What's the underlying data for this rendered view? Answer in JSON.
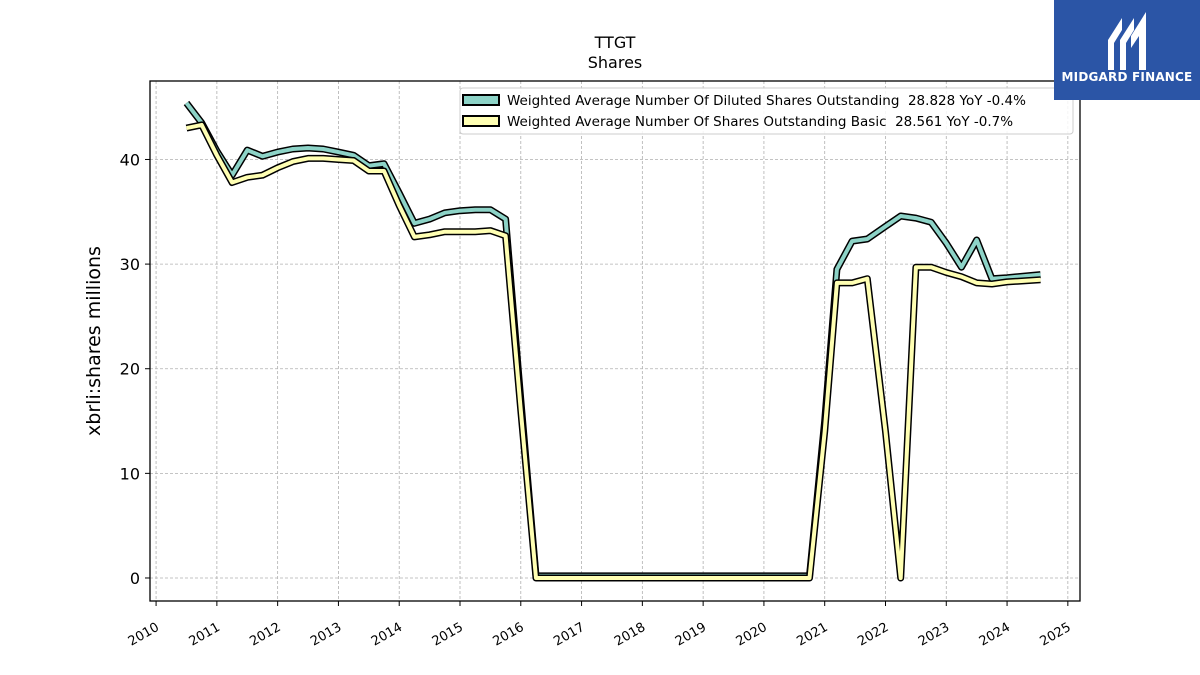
{
  "brand": {
    "name": "MIDGARD FINANCE",
    "logo_bg": "#2b55a6"
  },
  "chart_data": {
    "type": "line",
    "title": "TTGT",
    "subtitle": "Shares",
    "xlabel": "",
    "ylabel": "xbrli:shares millions",
    "xlim": [
      2009.9,
      2025.2
    ],
    "ylim": [
      -2.2,
      47.5
    ],
    "x_ticks": [
      "2010",
      "2011",
      "2012",
      "2013",
      "2014",
      "2015",
      "2016",
      "2017",
      "2018",
      "2019",
      "2020",
      "2021",
      "2022",
      "2023",
      "2024",
      "2025"
    ],
    "y_ticks": [
      "0",
      "10",
      "20",
      "30",
      "40"
    ],
    "grid": true,
    "legend_position": "top-right",
    "series": [
      {
        "name": "Weighted Average Number Of Diluted Shares Outstanding  28.828 YoY -0.4%",
        "color": "#8dd3c7",
        "points": [
          [
            2010.5,
            45.4
          ],
          [
            2010.75,
            43.5
          ],
          [
            2011.0,
            40.8
          ],
          [
            2011.25,
            38.5
          ],
          [
            2011.5,
            40.9
          ],
          [
            2011.75,
            40.3
          ],
          [
            2012.0,
            40.7
          ],
          [
            2012.25,
            41.0
          ],
          [
            2012.5,
            41.1
          ],
          [
            2012.75,
            41.0
          ],
          [
            2013.0,
            40.7
          ],
          [
            2013.25,
            40.4
          ],
          [
            2013.5,
            39.4
          ],
          [
            2013.75,
            39.6
          ],
          [
            2014.0,
            36.8
          ],
          [
            2014.25,
            33.9
          ],
          [
            2014.5,
            34.3
          ],
          [
            2014.75,
            34.9
          ],
          [
            2015.0,
            35.1
          ],
          [
            2015.25,
            35.2
          ],
          [
            2015.5,
            35.2
          ],
          [
            2015.75,
            34.3
          ],
          [
            2016.0,
            17.0
          ],
          [
            2016.25,
            0.2
          ],
          [
            2020.75,
            0.2
          ],
          [
            2021.0,
            15.0
          ],
          [
            2021.2,
            29.5
          ],
          [
            2021.45,
            32.2
          ],
          [
            2021.7,
            32.4
          ],
          [
            2022.0,
            33.6
          ],
          [
            2022.25,
            34.6
          ],
          [
            2022.5,
            34.4
          ],
          [
            2022.75,
            34.0
          ],
          [
            2023.0,
            32.0
          ],
          [
            2023.25,
            29.7
          ],
          [
            2023.5,
            32.3
          ],
          [
            2023.75,
            28.6
          ],
          [
            2024.0,
            28.7
          ],
          [
            2024.55,
            29.0
          ]
        ]
      },
      {
        "name": "Weighted Average Number Of Shares Outstanding Basic  28.561 YoY -0.7%",
        "color": "#ffffb3",
        "points": [
          [
            2010.5,
            43.0
          ],
          [
            2010.75,
            43.3
          ],
          [
            2011.0,
            40.4
          ],
          [
            2011.25,
            37.8
          ],
          [
            2011.5,
            38.3
          ],
          [
            2011.75,
            38.5
          ],
          [
            2012.0,
            39.2
          ],
          [
            2012.25,
            39.8
          ],
          [
            2012.5,
            40.1
          ],
          [
            2012.75,
            40.1
          ],
          [
            2013.0,
            40.0
          ],
          [
            2013.25,
            39.9
          ],
          [
            2013.5,
            38.9
          ],
          [
            2013.75,
            38.9
          ],
          [
            2014.0,
            35.6
          ],
          [
            2014.25,
            32.6
          ],
          [
            2014.5,
            32.8
          ],
          [
            2014.75,
            33.1
          ],
          [
            2015.0,
            33.1
          ],
          [
            2015.25,
            33.1
          ],
          [
            2015.5,
            33.2
          ],
          [
            2015.75,
            32.7
          ],
          [
            2016.0,
            16.0
          ],
          [
            2016.25,
            0.0
          ],
          [
            2020.75,
            0.0
          ],
          [
            2021.0,
            14.0
          ],
          [
            2021.2,
            28.2
          ],
          [
            2021.45,
            28.2
          ],
          [
            2021.7,
            28.6
          ],
          [
            2022.0,
            14.0
          ],
          [
            2022.25,
            0.0
          ],
          [
            2022.5,
            29.7
          ],
          [
            2022.75,
            29.7
          ],
          [
            2023.0,
            29.2
          ],
          [
            2023.25,
            28.8
          ],
          [
            2023.5,
            28.2
          ],
          [
            2023.75,
            28.1
          ],
          [
            2024.0,
            28.3
          ],
          [
            2024.55,
            28.5
          ]
        ]
      }
    ]
  }
}
